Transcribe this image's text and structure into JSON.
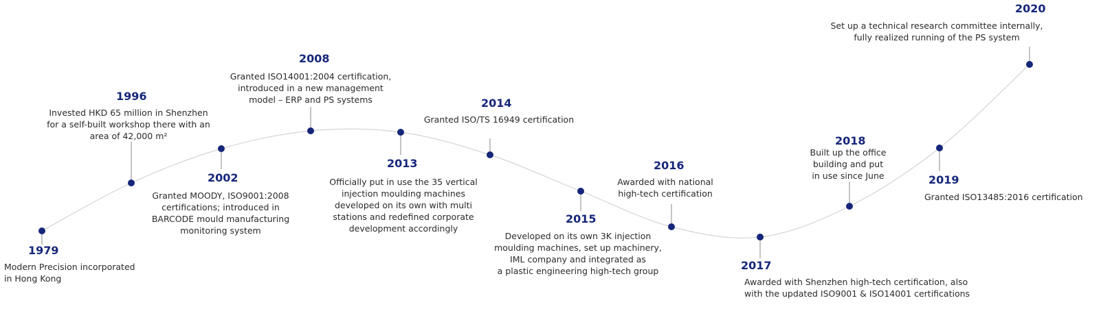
{
  "colors": {
    "year": "#15267a",
    "dot": "#15267a",
    "curve": "#d4d4d4",
    "stem": "#8a8a8a",
    "text": "#2a2a2a"
  },
  "milestones": [
    {
      "year": "1979",
      "text": "Modern Precision incorporated\nin Hong Kong"
    },
    {
      "year": "1996",
      "text": "Invested HKD 65 million in Shenzhen\nfor a self-built workshop there with an\narea of 42,000 m²"
    },
    {
      "year": "2002",
      "text": "Granted MOODY, ISO9001:2008\ncertifications; introduced in\nBARCODE mould manufacturing\nmonitoring system"
    },
    {
      "year": "2008",
      "text": "Granted ISO14001:2004 certification,\nintroduced in a new management\nmodel – ERP and PS systems"
    },
    {
      "year": "2013",
      "text": "Officially put in use the 35 vertical\ninjection moulding machines\ndeveloped on its own with multi\nstations and redefined corporate\ndevelopment accordingly"
    },
    {
      "year": "2014",
      "text": "Granted ISO/TS 16949 certification"
    },
    {
      "year": "2015",
      "text": "Developed on its own 3K injection\nmoulding machines, set up machinery,\nIML company and integrated as\na plastic engineering high-tech group"
    },
    {
      "year": "2016",
      "text": "Awarded with national\nhigh-tech certification"
    },
    {
      "year": "2017",
      "text": "Awarded with Shenzhen high-tech certification, also\nwith the updated ISO9001 & ISO14001 certifications"
    },
    {
      "year": "2018",
      "text": "Built up the office\nbuilding and put\nin use since June"
    },
    {
      "year": "2019",
      "text": "Granted ISO13485:2016 certification"
    },
    {
      "year": "2020",
      "text": "Set up a technical research committee internally,\nfully realized running of the PS system"
    }
  ]
}
